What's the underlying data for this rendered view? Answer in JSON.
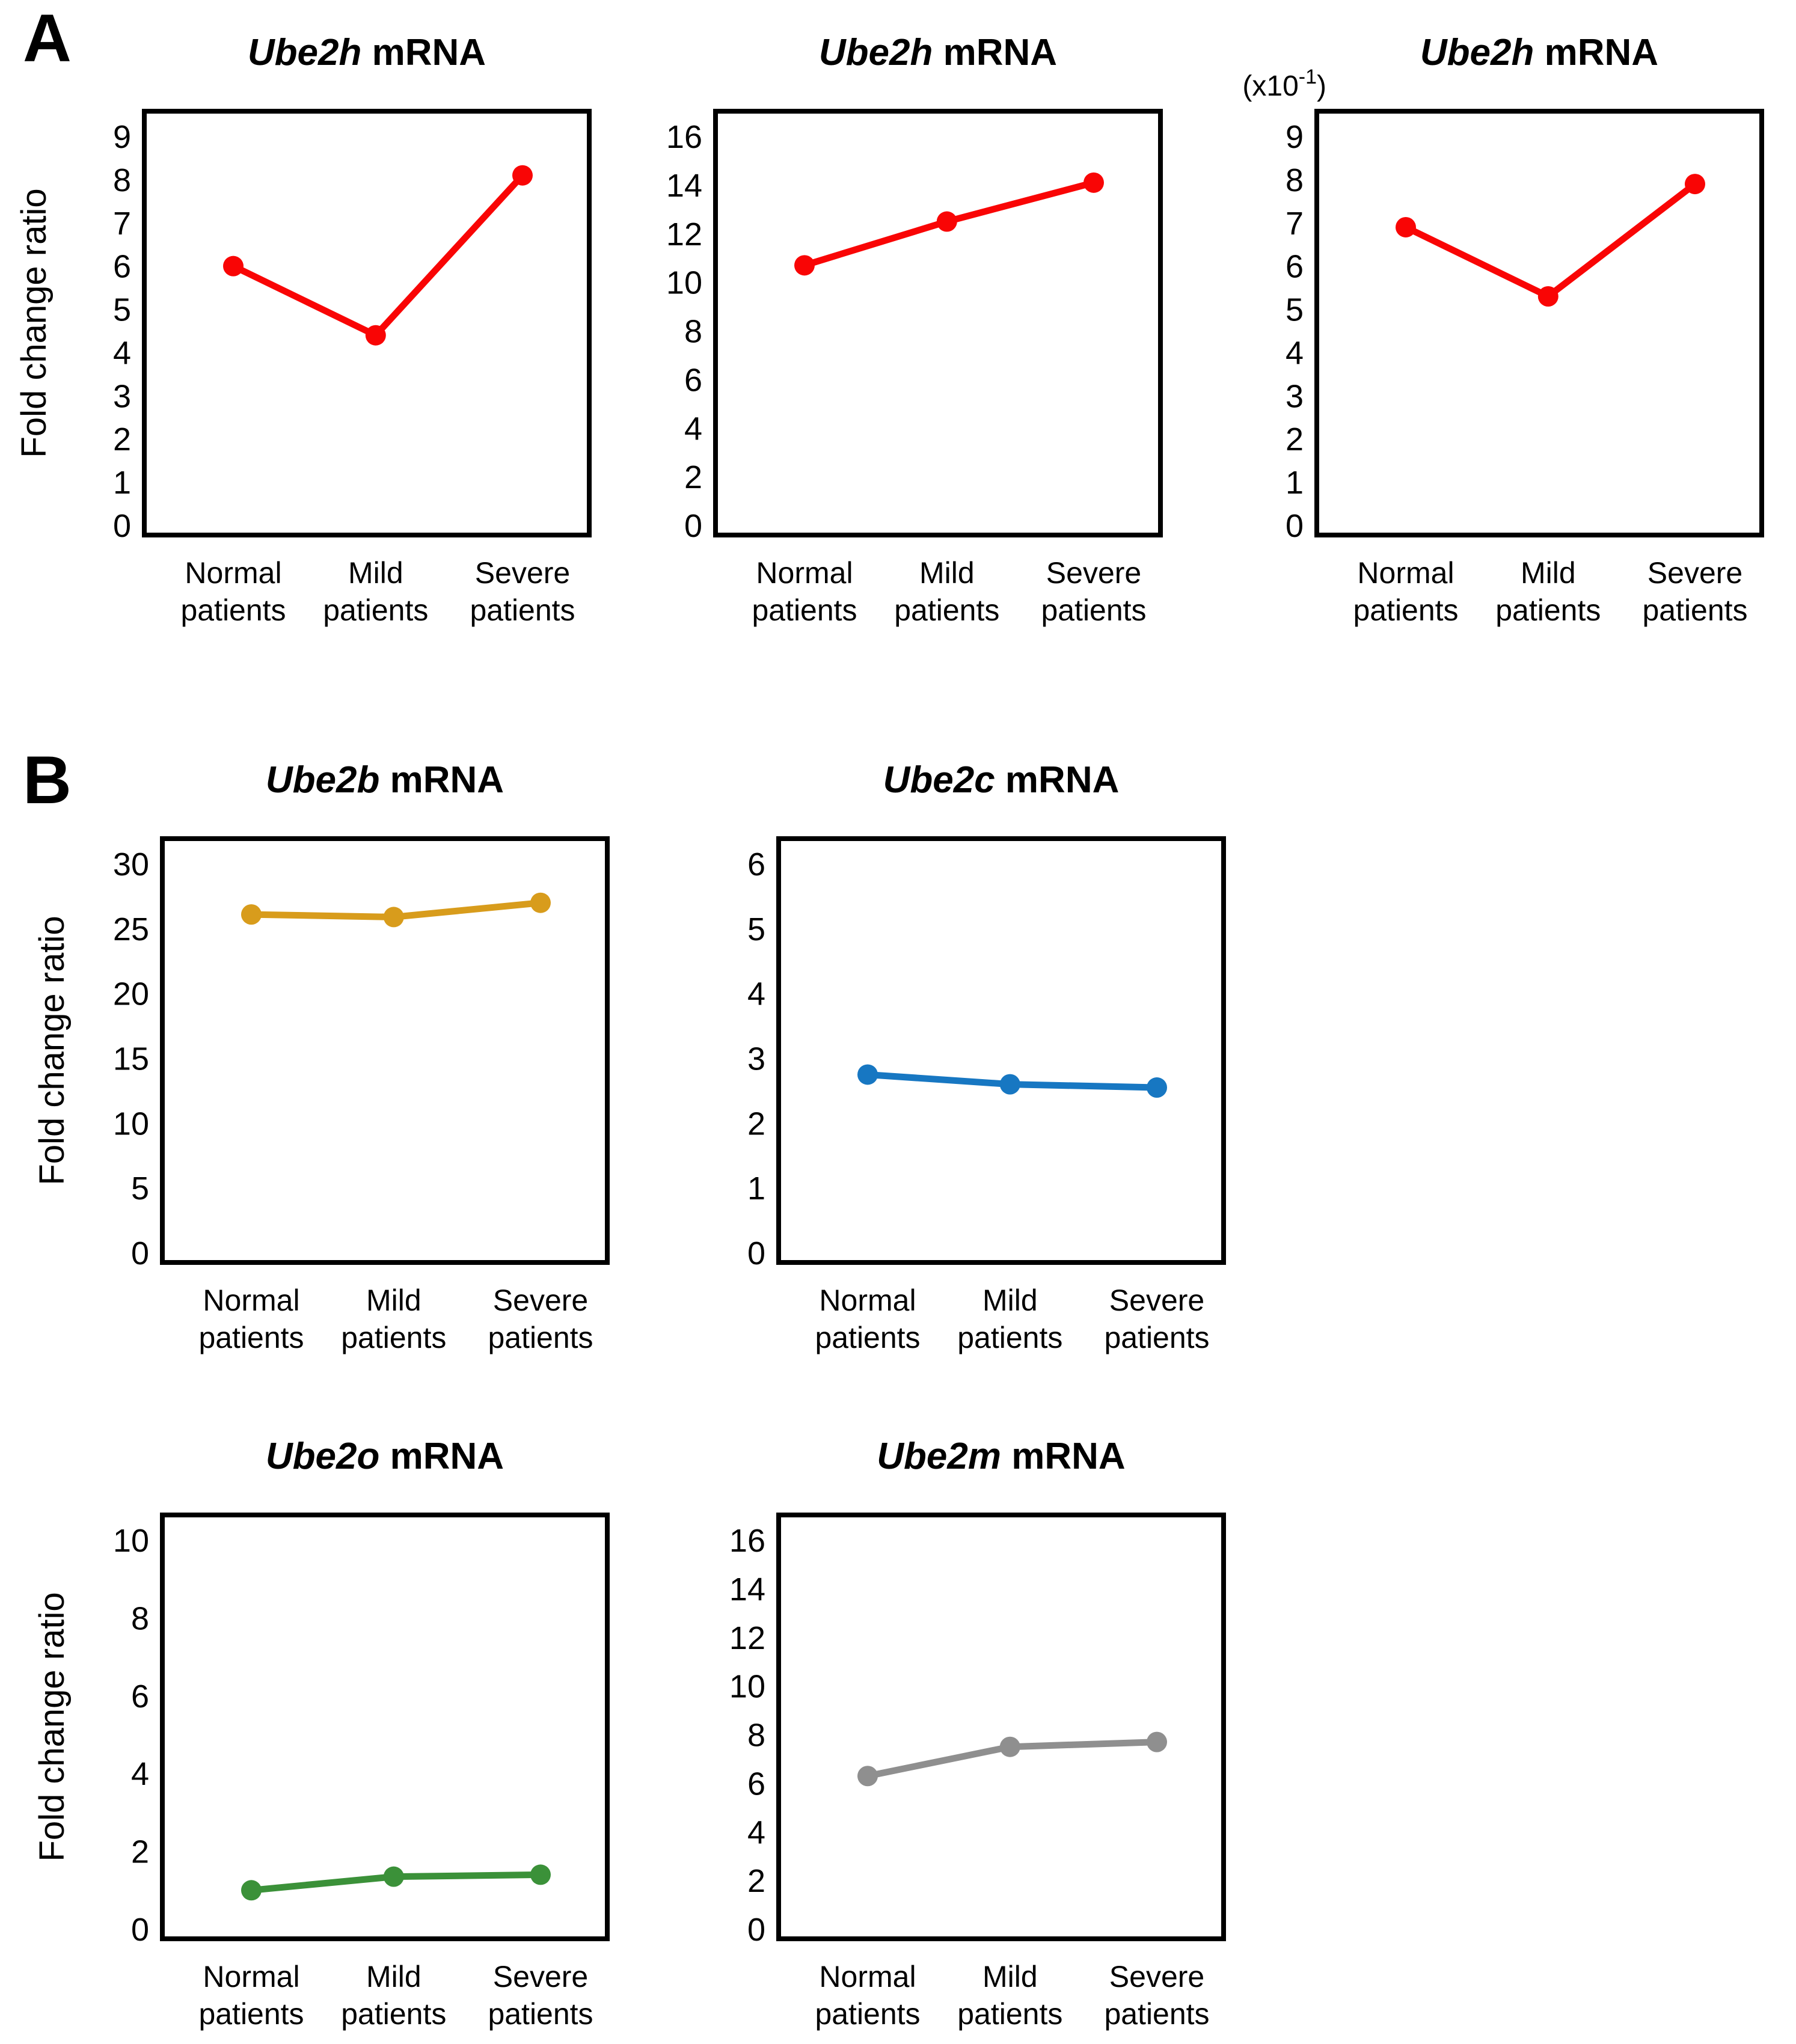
{
  "figure": {
    "panels": [
      {
        "label": "A"
      },
      {
        "label": "B"
      }
    ]
  },
  "chart_data": [
    {
      "panel": "A",
      "type": "line",
      "gene": "Ube2h",
      "title_rest": " mRNA",
      "ylabel": "Fold change ratio",
      "scale_note": null,
      "categories": [
        "Normal patients",
        "Mild patients",
        "Severe patients"
      ],
      "values": [
        6.0,
        4.4,
        8.1
      ],
      "ylim": [
        0,
        9
      ],
      "yticks": [
        0,
        1,
        2,
        3,
        4,
        5,
        6,
        7,
        8,
        9
      ],
      "grid": false,
      "legend": false,
      "color": "#F90505"
    },
    {
      "panel": "A",
      "type": "line",
      "gene": "Ube2h",
      "title_rest": " mRNA",
      "ylabel": null,
      "scale_note": null,
      "categories": [
        "Normal patients",
        "Mild patients",
        "Severe patients"
      ],
      "values": [
        10.7,
        12.5,
        14.1
      ],
      "ylim": [
        0,
        16
      ],
      "yticks": [
        0,
        2,
        4,
        6,
        8,
        10,
        12,
        14,
        16
      ],
      "grid": false,
      "legend": false,
      "color": "#F90505"
    },
    {
      "panel": "A",
      "type": "line",
      "gene": "Ube2h",
      "title_rest": " mRNA",
      "ylabel": null,
      "scale_note": {
        "prefix": "(x10",
        "sup": "-1",
        "suffix": ")"
      },
      "categories": [
        "Normal patients",
        "Mild patients",
        "Severe patients"
      ],
      "values": [
        6.9,
        5.3,
        7.9
      ],
      "ylim": [
        0,
        9
      ],
      "yticks": [
        0,
        1,
        2,
        3,
        4,
        5,
        6,
        7,
        8,
        9
      ],
      "grid": false,
      "legend": false,
      "color": "#F90505"
    },
    {
      "panel": "B",
      "type": "line",
      "gene": "Ube2b",
      "title_rest": " mRNA",
      "ylabel": "Fold change ratio",
      "scale_note": null,
      "categories": [
        "Normal patients",
        "Mild patients",
        "Severe patients"
      ],
      "values": [
        26.1,
        25.9,
        27.0
      ],
      "ylim": [
        0,
        30
      ],
      "yticks": [
        0,
        5,
        10,
        15,
        20,
        25,
        30
      ],
      "grid": false,
      "legend": false,
      "color": "#D89C1C"
    },
    {
      "panel": "B",
      "type": "line",
      "gene": "Ube2c",
      "title_rest": " mRNA",
      "ylabel": null,
      "scale_note": null,
      "categories": [
        "Normal patients",
        "Mild patients",
        "Severe patients"
      ],
      "values": [
        2.75,
        2.6,
        2.55
      ],
      "ylim": [
        0,
        6
      ],
      "yticks": [
        0,
        1,
        2,
        3,
        4,
        5,
        6
      ],
      "grid": false,
      "legend": false,
      "color": "#1777C2"
    },
    {
      "panel": "B",
      "type": "line",
      "gene": "Ube2o",
      "title_rest": " mRNA",
      "ylabel": "Fold change ratio",
      "scale_note": null,
      "categories": [
        "Normal patients",
        "Mild patients",
        "Severe patients"
      ],
      "values": [
        1.0,
        1.35,
        1.4
      ],
      "ylim": [
        0,
        10
      ],
      "yticks": [
        0,
        2,
        4,
        6,
        8,
        10
      ],
      "grid": false,
      "legend": false,
      "color": "#3B9139"
    },
    {
      "panel": "B",
      "type": "line",
      "gene": "Ube2m",
      "title_rest": " mRNA",
      "ylabel": null,
      "scale_note": null,
      "categories": [
        "Normal patients",
        "Mild patients",
        "Severe patients"
      ],
      "values": [
        6.3,
        7.5,
        7.7
      ],
      "ylim": [
        0,
        16
      ],
      "yticks": [
        0,
        2,
        4,
        6,
        8,
        10,
        12,
        14,
        16
      ],
      "grid": false,
      "legend": false,
      "color": "#8F8F8F"
    }
  ]
}
